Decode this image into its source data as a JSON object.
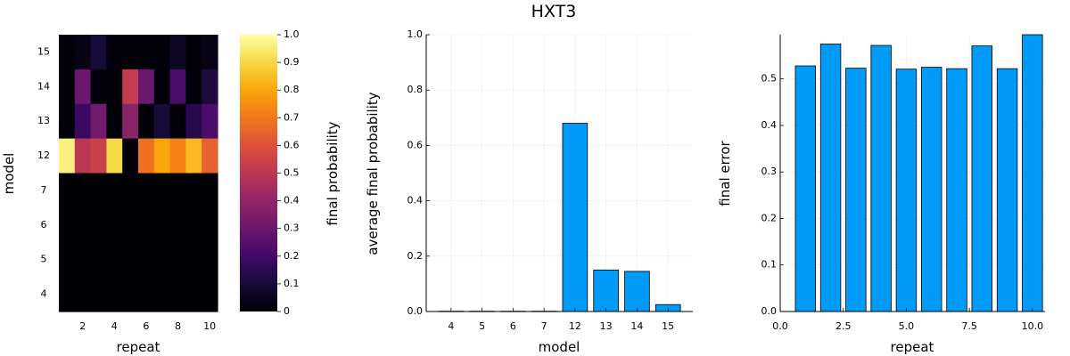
{
  "page_title": "HXT3",
  "chart_data": [
    {
      "type": "heatmap",
      "xlabel": "repeat",
      "ylabel": "model",
      "x_ticks": [
        "2",
        "4",
        "6",
        "8",
        "10"
      ],
      "y_categories": [
        "4",
        "5",
        "6",
        "7",
        "12",
        "13",
        "14",
        "15"
      ],
      "colorbar_label": "final probability",
      "colorbar_ticks": [
        "0",
        "0.1",
        "0.2",
        "0.3",
        "0.4",
        "0.5",
        "0.6",
        "0.7",
        "0.8",
        "0.9",
        "1.0"
      ],
      "colorbar_range": [
        0,
        1
      ],
      "colormap": "inferno",
      "rows": [
        {
          "model": "15",
          "values": [
            0.01,
            0.03,
            0.1,
            0.01,
            0.01,
            0.01,
            0.01,
            0.06,
            0.01,
            0.03
          ]
        },
        {
          "model": "14",
          "values": [
            0.01,
            0.3,
            0.01,
            0.01,
            0.52,
            0.3,
            0.01,
            0.22,
            0.01,
            0.12
          ]
        },
        {
          "model": "13",
          "values": [
            0.01,
            0.18,
            0.32,
            0.01,
            0.38,
            0.01,
            0.1,
            0.01,
            0.14,
            0.22
          ]
        },
        {
          "model": "12",
          "values": [
            0.96,
            0.5,
            0.54,
            0.9,
            0.01,
            0.68,
            0.8,
            0.72,
            0.84,
            0.64
          ]
        },
        {
          "model": "7",
          "values": [
            0,
            0,
            0,
            0,
            0,
            0,
            0,
            0,
            0,
            0
          ]
        },
        {
          "model": "6",
          "values": [
            0,
            0,
            0,
            0,
            0,
            0,
            0,
            0,
            0,
            0
          ]
        },
        {
          "model": "5",
          "values": [
            0,
            0,
            0,
            0,
            0,
            0,
            0,
            0,
            0,
            0
          ]
        },
        {
          "model": "4",
          "values": [
            0,
            0,
            0,
            0,
            0,
            0,
            0,
            0,
            0,
            0
          ]
        }
      ]
    },
    {
      "type": "bar",
      "categories": [
        "4",
        "5",
        "6",
        "7",
        "12",
        "13",
        "14",
        "15"
      ],
      "values": [
        0.001,
        0.001,
        0.001,
        0.001,
        0.68,
        0.15,
        0.145,
        0.025
      ],
      "xlabel": "model",
      "ylabel": "average final probability",
      "ylim": [
        0,
        1.0
      ],
      "y_ticks": [
        "0.0",
        "0.2",
        "0.4",
        "0.6",
        "0.8",
        "1.0"
      ],
      "bar_color": "#009af9",
      "grid": true
    },
    {
      "type": "bar",
      "x": [
        1,
        2,
        3,
        4,
        5,
        6,
        7,
        8,
        9,
        10
      ],
      "values": [
        0.528,
        0.575,
        0.523,
        0.572,
        0.521,
        0.525,
        0.522,
        0.571,
        0.522,
        0.595
      ],
      "xlabel": "repeat",
      "ylabel": "final error",
      "ylim": [
        0,
        0.595
      ],
      "xlim": [
        0,
        10.5
      ],
      "x_ticks": [
        "0.0",
        "2.5",
        "5.0",
        "7.5",
        "10.0"
      ],
      "y_ticks": [
        "0.0",
        "0.1",
        "0.2",
        "0.3",
        "0.4",
        "0.5"
      ],
      "bar_color": "#009af9",
      "grid": true
    }
  ]
}
